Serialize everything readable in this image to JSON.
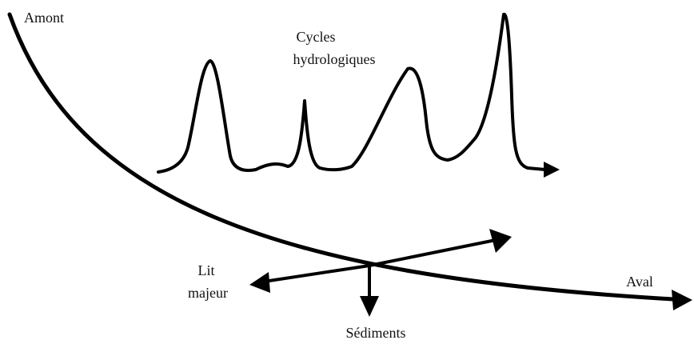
{
  "labels": {
    "upstream": "Amont",
    "cycles_line1": "Cycles",
    "cycles_line2": "hydrologiques",
    "floodplain_line1": "Lit",
    "floodplain_line2": "majeur",
    "downstream": "Aval",
    "sediments": "Sédiments"
  }
}
